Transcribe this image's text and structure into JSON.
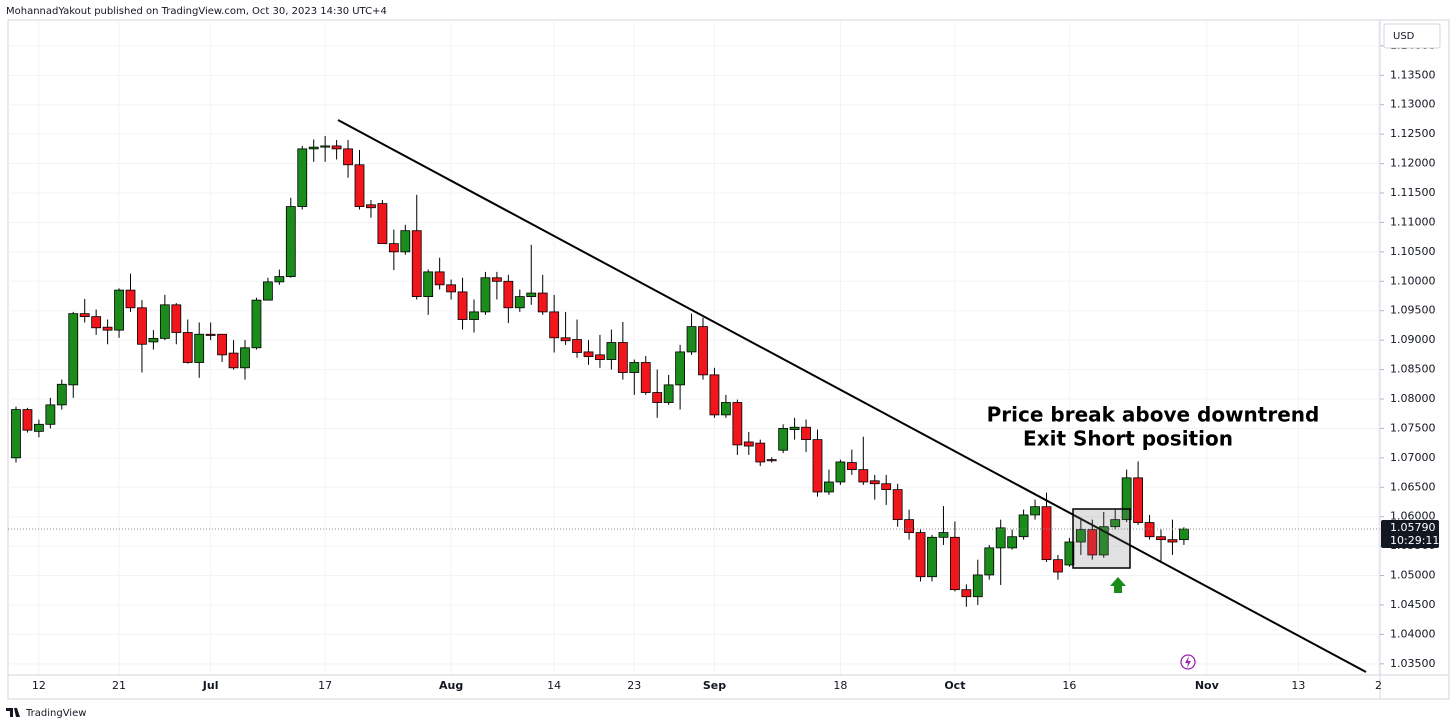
{
  "header": "MohannadYakout published on TradingView.com, Oct 30, 2023 14:30 UTC+4",
  "brand": "TradingView",
  "chart_data": {
    "type": "candlestick",
    "currency": "USD",
    "annotations": [
      "Price break above downtrend",
      "Exit Short position"
    ],
    "last_price": {
      "value": 1.0579,
      "label": "1.05790"
    },
    "countdown": "10:29:11",
    "up_color": "#1b8c1b",
    "down_color": "#f0161c",
    "grid": true,
    "categories": [
      null,
      null,
      "12",
      null,
      null,
      null,
      null,
      null,
      null,
      "21",
      null,
      null,
      null,
      null,
      null,
      null,
      null,
      "Jul",
      null,
      null,
      null,
      null,
      null,
      null,
      null,
      null,
      null,
      "17",
      null,
      null,
      null,
      null,
      null,
      null,
      null,
      null,
      null,
      null,
      "Aug",
      null,
      null,
      null,
      null,
      null,
      null,
      null,
      null,
      "14",
      null,
      null,
      null,
      null,
      null,
      null,
      "23",
      null,
      null,
      null,
      null,
      null,
      null,
      "Sep",
      null,
      null,
      null,
      null,
      null,
      null,
      null,
      null,
      null,
      null,
      "18",
      null,
      null,
      null,
      null,
      null,
      null,
      null,
      null,
      null,
      "Oct",
      null,
      null,
      null,
      null,
      null,
      null,
      null,
      null,
      null,
      "16",
      null,
      null,
      null,
      null,
      null,
      null,
      null,
      null,
      null,
      null,
      null,
      "Nov",
      null,
      null,
      null,
      null,
      null,
      null,
      null,
      "13",
      null,
      null,
      null,
      null,
      null,
      null,
      "2"
    ],
    "open": [
      1.07,
      1.0782,
      1.0745,
      1.0757,
      1.079,
      1.0824,
      1.0945,
      1.094,
      1.0922,
      1.0917,
      1.0985,
      1.0955,
      1.0897,
      1.0903,
      1.096,
      1.0913,
      1.0862,
      1.091,
      1.091,
      1.0878,
      1.0853,
      1.0887,
      1.0968,
      1.0999,
      1.1008,
      1.1127,
      1.1225,
      1.1228,
      1.123,
      1.1225,
      1.1198,
      1.113,
      1.1132,
      1.1064,
      1.105,
      1.1086,
      1.0974,
      1.1016,
      1.0994,
      1.0982,
      1.0935,
      1.0948,
      1.1006,
      1.1,
      1.0955,
      1.0974,
      1.098,
      1.0948,
      1.0904,
      1.0901,
      1.088,
      1.0875,
      1.0867,
      1.0896,
      1.0845,
      1.0862,
      1.0811,
      1.0794,
      1.0824,
      1.088,
      1.0923,
      1.0841,
      1.0773,
      1.0794,
      1.0727,
      1.0725,
      1.0697,
      1.0713,
      1.0748,
      1.0752,
      1.0731,
      1.0642,
      1.0659,
      1.0692,
      1.068,
      1.0661,
      1.0656,
      1.0646,
      1.0595,
      1.0573,
      1.0498,
      1.0565,
      1.0565,
      1.0476,
      1.0464,
      1.0501,
      1.0547,
      1.0547,
      1.0566,
      1.0603,
      1.0617,
      1.0527,
      1.0518,
      1.0557,
      1.0578,
      1.0535,
      1.0583,
      1.0595,
      1.0666,
      1.059,
      1.0566,
      1.0561,
      1.0561,
      null,
      null,
      null,
      null,
      null,
      null,
      null,
      null,
      null,
      null,
      null,
      null,
      null,
      null,
      null,
      null,
      null
    ],
    "high": [
      1.0787,
      1.0785,
      1.0765,
      1.0802,
      1.0833,
      1.0948,
      1.097,
      1.0952,
      1.0935,
      1.0988,
      1.1013,
      1.0968,
      1.0917,
      1.0977,
      1.0963,
      1.0935,
      1.093,
      1.093,
      1.091,
      1.09,
      1.09,
      1.0972,
      1.1006,
      1.102,
      1.1142,
      1.123,
      1.1241,
      1.1247,
      1.124,
      1.124,
      1.1223,
      1.1138,
      1.1138,
      1.1088,
      1.1096,
      1.1147,
      1.102,
      1.104,
      1.1003,
      1.1006,
      1.0969,
      1.1016,
      1.1016,
      1.1011,
      1.0986,
      1.1062,
      1.1011,
      1.0977,
      1.0948,
      1.0935,
      1.09,
      1.0909,
      1.0918,
      1.0931,
      1.0867,
      1.0873,
      1.085,
      1.0841,
      1.0892,
      1.0945,
      1.0938,
      1.0853,
      1.0807,
      1.0799,
      1.0744,
      1.0731,
      1.0701,
      1.0757,
      1.0768,
      1.0765,
      1.0748,
      1.068,
      1.0697,
      1.0714,
      1.0736,
      1.0671,
      1.0671,
      1.0656,
      1.0612,
      1.0578,
      1.0569,
      1.0618,
      1.0592,
      1.0485,
      1.0527,
      1.0552,
      1.0595,
      1.0578,
      1.0612,
      1.0629,
      1.0641,
      1.0535,
      1.0564,
      1.0598,
      1.0595,
      1.0608,
      1.0612,
      1.068,
      1.0694,
      1.0603,
      1.0578,
      1.0595,
      1.0582,
      null,
      null,
      null,
      null,
      null,
      null,
      null,
      null,
      null,
      null,
      null,
      null,
      null,
      null,
      null,
      null,
      null
    ],
    "low": [
      1.0692,
      1.0743,
      1.0735,
      1.075,
      1.0782,
      1.0802,
      1.093,
      1.0909,
      1.0893,
      1.0904,
      1.0948,
      1.0845,
      1.0884,
      1.09,
      1.0893,
      1.086,
      1.0836,
      1.09,
      1.0863,
      1.085,
      1.0833,
      1.0884,
      1.0968,
      1.0994,
      1.1006,
      1.1122,
      1.1203,
      1.1203,
      1.1207,
      1.1176,
      1.1122,
      1.1108,
      1.1064,
      1.1019,
      1.1045,
      1.0969,
      1.0943,
      1.0986,
      1.0969,
      1.0918,
      1.0913,
      1.0943,
      1.0969,
      1.0929,
      1.0948,
      1.096,
      1.0943,
      1.0879,
      1.0892,
      1.087,
      1.0858,
      1.0853,
      1.085,
      1.0833,
      1.0807,
      1.0807,
      1.0768,
      1.079,
      1.0782,
      1.0875,
      1.0833,
      1.0768,
      1.0768,
      1.0705,
      1.0705,
      1.0686,
      1.0692,
      1.0708,
      1.0731,
      1.071,
      1.0634,
      1.0637,
      1.0654,
      1.0671,
      1.0654,
      1.0629,
      1.062,
      1.0583,
      1.0561,
      1.049,
      1.049,
      1.0552,
      1.0473,
      1.0447,
      1.045,
      1.0493,
      1.0484,
      1.0544,
      1.0561,
      1.0595,
      1.0523,
      1.0493,
      1.0515,
      1.0535,
      1.0527,
      1.053,
      1.0578,
      1.0591,
      1.0586,
      1.0561,
      1.0523,
      1.0535,
      1.0552,
      null,
      null,
      null,
      null,
      null,
      null,
      null,
      null,
      null,
      null,
      null,
      null,
      null,
      null,
      null,
      null,
      null
    ],
    "close": [
      1.0782,
      1.0747,
      1.0757,
      1.079,
      1.0825,
      1.0945,
      1.094,
      1.0921,
      1.0917,
      1.0985,
      1.0955,
      1.0893,
      1.0903,
      1.096,
      1.0913,
      1.0862,
      1.091,
      1.0908,
      1.0875,
      1.0853,
      1.0887,
      1.0968,
      1.0999,
      1.1008,
      1.1127,
      1.1225,
      1.1228,
      1.123,
      1.1225,
      1.1198,
      1.1127,
      1.1125,
      1.1064,
      1.105,
      1.1086,
      1.0974,
      1.1016,
      1.0994,
      1.0982,
      1.0935,
      1.0948,
      1.1006,
      1.1,
      1.0955,
      1.0974,
      1.098,
      1.0948,
      1.0904,
      1.0899,
      1.0879,
      1.0872,
      1.0867,
      1.0896,
      1.0845,
      1.0862,
      1.0811,
      1.0794,
      1.0824,
      1.088,
      1.0923,
      1.0841,
      1.0773,
      1.0794,
      1.0722,
      1.072,
      1.0693,
      1.0695,
      1.075,
      1.0752,
      1.0731,
      1.0642,
      1.0659,
      1.0693,
      1.068,
      1.0659,
      1.0656,
      1.0646,
      1.0595,
      1.0573,
      1.0498,
      1.0565,
      1.0573,
      1.0476,
      1.0464,
      1.0501,
      1.0547,
      1.0581,
      1.0566,
      1.0603,
      1.0617,
      1.0527,
      1.0506,
      1.0557,
      1.0578,
      1.0535,
      1.0583,
      1.0595,
      1.0666,
      1.059,
      1.0566,
      1.0561,
      1.0557,
      1.0579,
      null,
      null,
      null,
      null,
      null,
      null,
      null,
      null,
      null,
      null,
      null,
      null,
      null,
      null,
      null,
      null,
      null
    ],
    "ylim": [
      1.0331,
      1.1444
    ],
    "yticks": [
      {
        "value": 1.035,
        "label": "1.03500"
      },
      {
        "value": 1.04,
        "label": "1.04000"
      },
      {
        "value": 1.045,
        "label": "1.04500"
      },
      {
        "value": 1.05,
        "label": "1.05000"
      },
      {
        "value": 1.055,
        "label": "1.05500"
      },
      {
        "value": 1.06,
        "label": "1.06000"
      },
      {
        "value": 1.065,
        "label": "1.06500"
      },
      {
        "value": 1.07,
        "label": "1.07000"
      },
      {
        "value": 1.075,
        "label": "1.07500"
      },
      {
        "value": 1.08,
        "label": "1.08000"
      },
      {
        "value": 1.085,
        "label": "1.08500"
      },
      {
        "value": 1.09,
        "label": "1.09000"
      },
      {
        "value": 1.095,
        "label": "1.09500"
      },
      {
        "value": 1.1,
        "label": "1.10000"
      },
      {
        "value": 1.105,
        "label": "1.10500"
      },
      {
        "value": 1.11,
        "label": "1.11000"
      },
      {
        "value": 1.115,
        "label": "1.11500"
      },
      {
        "value": 1.12,
        "label": "1.12000"
      },
      {
        "value": 1.125,
        "label": "1.12500"
      },
      {
        "value": 1.13,
        "label": "1.13000"
      },
      {
        "value": 1.135,
        "label": "1.13500"
      },
      {
        "value": 1.14,
        "label": "1.14000"
      }
    ]
  }
}
